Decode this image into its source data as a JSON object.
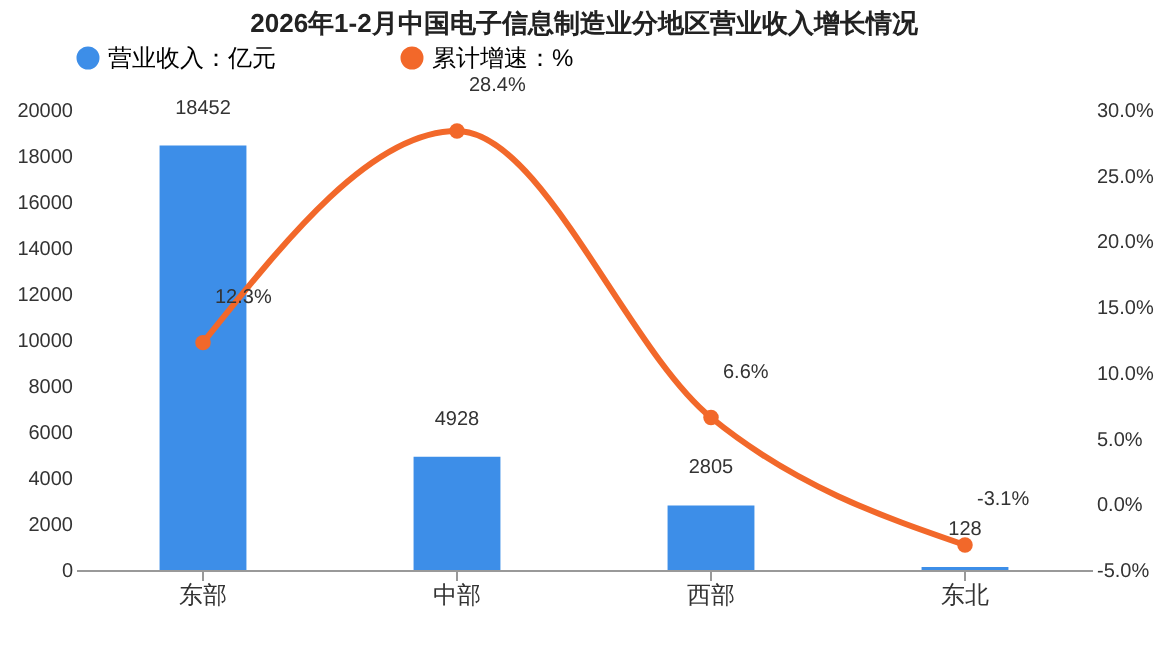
{
  "chart_data": {
    "type": "bar",
    "title": "2026年1-2月中国电子信息制造业分地区营业收入增长情况",
    "categories": [
      "东部",
      "中部",
      "西部",
      "东北"
    ],
    "series": [
      {
        "name": "营业收入：亿元",
        "color": "#3d8ee8",
        "values": [
          18452,
          4928,
          2805,
          128
        ],
        "value_labels": [
          "18452",
          "4928",
          "2805",
          "128"
        ]
      },
      {
        "name": "累计增速：%",
        "type": "line",
        "axis": "y2",
        "color": "#f2682a",
        "values": [
          12.3,
          28.4,
          6.6,
          -3.1
        ],
        "value_labels": [
          "12.3%",
          "28.4%",
          "6.6%",
          "-3.1%"
        ]
      }
    ],
    "ylim": [
      0,
      20000
    ],
    "yticks": [
      0,
      2000,
      4000,
      6000,
      8000,
      10000,
      12000,
      14000,
      16000,
      18000,
      20000
    ],
    "y2lim": [
      -5,
      30
    ],
    "y2ticks": [
      {
        "value": -5,
        "label": "-5.0%"
      },
      {
        "value": 0,
        "label": "0.0%"
      },
      {
        "value": 5,
        "label": "5.0%"
      },
      {
        "value": 10,
        "label": "10.0%"
      },
      {
        "value": 15,
        "label": "15.0%"
      },
      {
        "value": 20,
        "label": "20.0%"
      },
      {
        "value": 25,
        "label": "25.0%"
      },
      {
        "value": 30,
        "label": "30.0%"
      }
    ],
    "legend": "top",
    "marker": "circle",
    "line_style": "solid",
    "grid": false
  }
}
